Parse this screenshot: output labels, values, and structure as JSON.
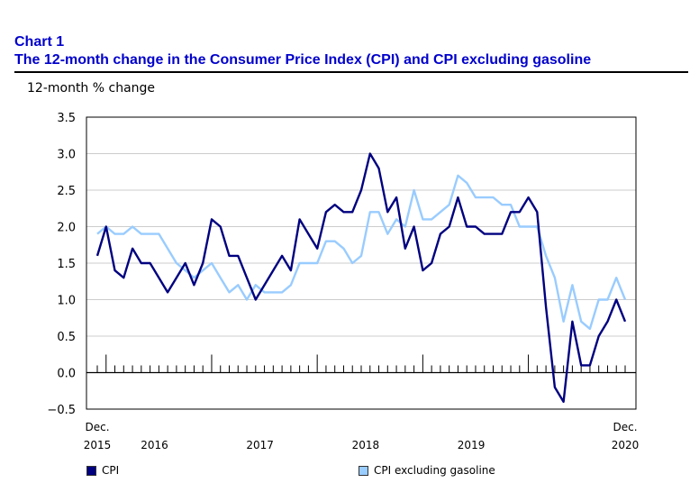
{
  "header": {
    "chart_number": "Chart 1",
    "title": "The 12-month change in the Consumer Price Index (CPI) and CPI excluding gasoline"
  },
  "chart_data": {
    "type": "line",
    "title": "The 12-month change in the Consumer Price Index (CPI) and CPI excluding gasoline",
    "ylabel": "12-month % change",
    "ylim": [
      -0.5,
      3.5
    ],
    "yticks": [
      "3.5",
      "3.0",
      "2.5",
      "2.0",
      "1.5",
      "1.0",
      "0.5",
      "0.0",
      "−0.5"
    ],
    "ytick_values": [
      3.5,
      3.0,
      2.5,
      2.0,
      1.5,
      1.0,
      0.5,
      0.0,
      -0.5
    ],
    "x_start": "Dec. 2015",
    "x_end": "Dec. 2020",
    "xtick_labels": [
      {
        "top": "Dec.",
        "bottom": "2015"
      },
      {
        "top": "",
        "bottom": "2016"
      },
      {
        "top": "",
        "bottom": "2017"
      },
      {
        "top": "",
        "bottom": "2018"
      },
      {
        "top": "",
        "bottom": "2019"
      },
      {
        "top": "Dec.",
        "bottom": "2020"
      }
    ],
    "grid": true,
    "legend_position": "bottom",
    "series": [
      {
        "name": "CPI",
        "color": "#000080",
        "values": [
          1.6,
          2.0,
          1.4,
          1.3,
          1.7,
          1.5,
          1.5,
          1.3,
          1.1,
          1.3,
          1.5,
          1.2,
          1.5,
          2.1,
          2.0,
          1.6,
          1.6,
          1.3,
          1.0,
          1.2,
          1.4,
          1.6,
          1.4,
          2.1,
          1.9,
          1.7,
          2.2,
          2.3,
          2.2,
          2.2,
          2.5,
          3.0,
          2.8,
          2.2,
          2.4,
          1.7,
          2.0,
          1.4,
          1.5,
          1.9,
          2.0,
          2.4,
          2.0,
          2.0,
          1.9,
          1.9,
          1.9,
          2.2,
          2.2,
          2.4,
          2.2,
          0.9,
          -0.2,
          -0.4,
          0.7,
          0.1,
          0.1,
          0.5,
          0.7,
          1.0,
          0.7
        ]
      },
      {
        "name": "CPI excluding gasoline",
        "color": "#99ccff",
        "values": [
          1.9,
          2.0,
          1.9,
          1.9,
          2.0,
          1.9,
          1.9,
          1.9,
          1.7,
          1.5,
          1.4,
          1.3,
          1.4,
          1.5,
          1.3,
          1.1,
          1.2,
          1.0,
          1.2,
          1.1,
          1.1,
          1.1,
          1.2,
          1.5,
          1.5,
          1.5,
          1.8,
          1.8,
          1.7,
          1.5,
          1.6,
          2.2,
          2.2,
          1.9,
          2.1,
          2.0,
          2.5,
          2.1,
          2.1,
          2.2,
          2.3,
          2.7,
          2.6,
          2.4,
          2.4,
          2.4,
          2.3,
          2.3,
          2.0,
          2.0,
          2.0,
          1.6,
          1.3,
          0.7,
          1.2,
          0.7,
          0.6,
          1.0,
          1.0,
          1.3,
          1.0
        ]
      }
    ]
  }
}
